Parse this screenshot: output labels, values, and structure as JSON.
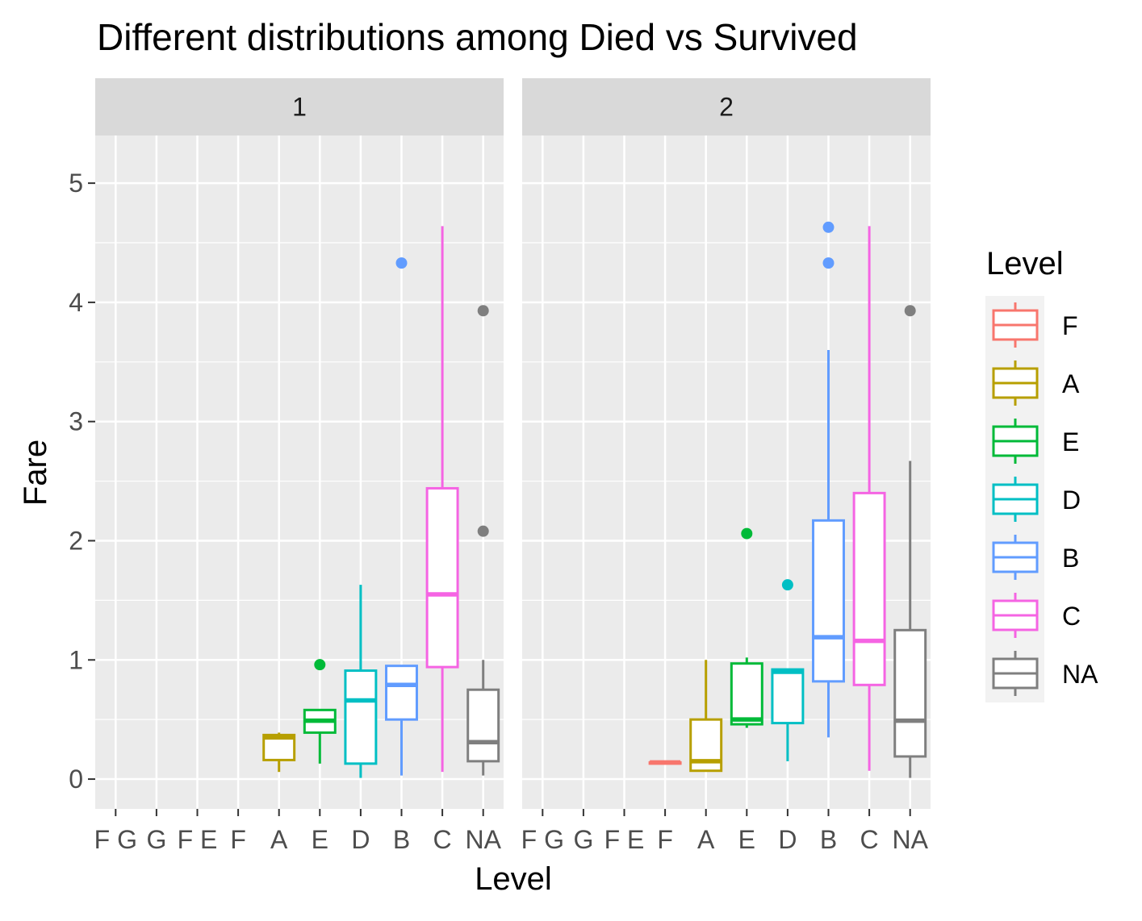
{
  "chart_data": {
    "type": "boxplot",
    "title": "Different distributions among Died vs Survived",
    "xlabel": "Level",
    "ylabel": "Fare",
    "ylim": [
      -0.25,
      5.4
    ],
    "yticks": [
      0,
      1,
      2,
      3,
      4,
      5
    ],
    "categories": [
      "F G",
      "G",
      "F E",
      "F",
      "A",
      "E",
      "D",
      "B",
      "C",
      "NA"
    ],
    "legend": {
      "title": "Level",
      "placement": "right",
      "entries": [
        {
          "label": "F",
          "color": "#F8766D"
        },
        {
          "label": "A",
          "color": "#B79F00"
        },
        {
          "label": "E",
          "color": "#00BA38"
        },
        {
          "label": "D",
          "color": "#00BFC4"
        },
        {
          "label": "B",
          "color": "#619CFF"
        },
        {
          "label": "C",
          "color": "#F564E3"
        },
        {
          "label": "NA",
          "color": "#7F7F7F"
        }
      ]
    },
    "panels": [
      {
        "label": "1",
        "boxes": [
          {
            "category": "A",
            "color": "#B79F00",
            "min": 0.06,
            "q1": 0.16,
            "median": 0.35,
            "q3": 0.37,
            "max": 0.39,
            "outliers": []
          },
          {
            "category": "E",
            "color": "#00BA38",
            "min": 0.13,
            "q1": 0.39,
            "median": 0.49,
            "q3": 0.58,
            "max": 0.58,
            "outliers": [
              0.96
            ]
          },
          {
            "category": "D",
            "color": "#00BFC4",
            "min": 0.01,
            "q1": 0.13,
            "median": 0.66,
            "q3": 0.91,
            "max": 1.63,
            "outliers": []
          },
          {
            "category": "B",
            "color": "#619CFF",
            "min": 0.03,
            "q1": 0.5,
            "median": 0.79,
            "q3": 0.95,
            "max": 0.95,
            "outliers": [
              4.33
            ]
          },
          {
            "category": "C",
            "color": "#F564E3",
            "min": 0.06,
            "q1": 0.94,
            "median": 1.55,
            "q3": 2.44,
            "max": 4.64,
            "outliers": []
          },
          {
            "category": "NA",
            "color": "#7F7F7F",
            "min": 0.03,
            "q1": 0.15,
            "median": 0.31,
            "q3": 0.75,
            "max": 1.0,
            "outliers": [
              2.08,
              3.93
            ]
          }
        ]
      },
      {
        "label": "2",
        "boxes": [
          {
            "category": "F",
            "color": "#F8766D",
            "min": 0.13,
            "q1": 0.13,
            "median": 0.14,
            "q3": 0.14,
            "max": 0.14,
            "outliers": []
          },
          {
            "category": "A",
            "color": "#B79F00",
            "min": 0.07,
            "q1": 0.07,
            "median": 0.15,
            "q3": 0.5,
            "max": 1.0,
            "outliers": []
          },
          {
            "category": "E",
            "color": "#00BA38",
            "min": 0.43,
            "q1": 0.46,
            "median": 0.5,
            "q3": 0.97,
            "max": 1.02,
            "outliers": [
              2.06
            ]
          },
          {
            "category": "D",
            "color": "#00BFC4",
            "min": 0.15,
            "q1": 0.47,
            "median": 0.9,
            "q3": 0.92,
            "max": 0.92,
            "outliers": [
              1.63
            ]
          },
          {
            "category": "B",
            "color": "#619CFF",
            "min": 0.35,
            "q1": 0.82,
            "median": 1.19,
            "q3": 2.17,
            "max": 3.6,
            "outliers": [
              4.33,
              4.63
            ]
          },
          {
            "category": "C",
            "color": "#F564E3",
            "min": 0.07,
            "q1": 0.79,
            "median": 1.16,
            "q3": 2.4,
            "max": 4.64,
            "outliers": []
          },
          {
            "category": "NA",
            "color": "#7F7F7F",
            "min": 0.01,
            "q1": 0.19,
            "median": 0.49,
            "q3": 1.25,
            "max": 2.67,
            "outliers": [
              3.93
            ]
          }
        ]
      }
    ]
  }
}
